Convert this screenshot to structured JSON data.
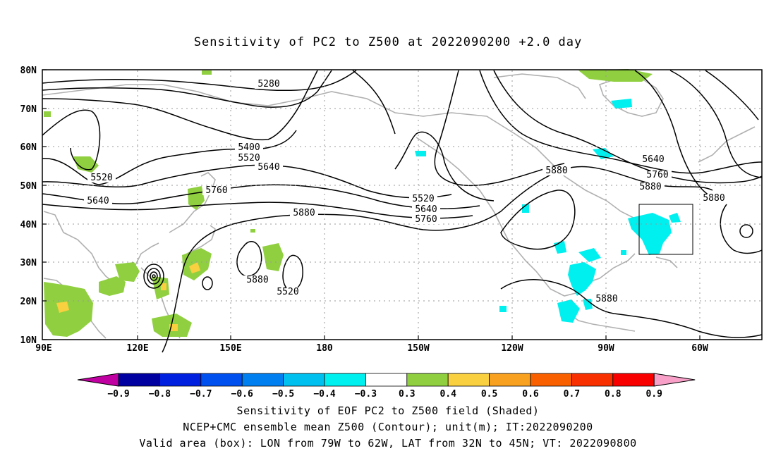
{
  "title": "Sensitivity of PC2 to Z500 at 2022090200 +2.0 day",
  "lat_labels": [
    "80N",
    "70N",
    "60N",
    "50N",
    "40N",
    "30N",
    "20N",
    "10N"
  ],
  "lon_labels": [
    "90E",
    "120E",
    "150E",
    "180",
    "150W",
    "120W",
    "90W",
    "60W"
  ],
  "contour_labels": [
    {
      "text": "5280"
    },
    {
      "text": "5400"
    },
    {
      "text": "5520"
    },
    {
      "text": "5640"
    },
    {
      "text": "5520"
    },
    {
      "text": "5640"
    },
    {
      "text": "5760"
    },
    {
      "text": "5880"
    },
    {
      "text": "5520"
    },
    {
      "text": "5640"
    },
    {
      "text": "5760"
    },
    {
      "text": "5880"
    },
    {
      "text": "5880"
    },
    {
      "text": "5520"
    },
    {
      "text": "5640"
    },
    {
      "text": "5760"
    },
    {
      "text": "5880"
    },
    {
      "text": "5880"
    },
    {
      "text": "5880"
    }
  ],
  "colorbar": {
    "levels": [
      "-0.9",
      "-0.8",
      "-0.7",
      "-0.6",
      "-0.5",
      "-0.4",
      "-0.3",
      "0.3",
      "0.4",
      "0.5",
      "0.6",
      "0.7",
      "0.8",
      "0.9"
    ],
    "colors": [
      "#c000a0",
      "#0000a0",
      "#0020e0",
      "#0050f0",
      "#0080f0",
      "#00c0f0",
      "#00f0f0",
      "#ffffff",
      "#90d040",
      "#f8d040",
      "#f8a020",
      "#f86000",
      "#f83000",
      "#f80000",
      "#f8a0c8"
    ]
  },
  "shading_colors": {
    "positive_low": "#90d040",
    "positive_mid": "#f8d040",
    "negative": "#00f0f0"
  },
  "valid_box": {
    "lon_west": "79W",
    "lon_east": "62W",
    "lat_south": "32N",
    "lat_north": "45N"
  },
  "captions": {
    "line1": "Sensitivity of EOF PC2 to Z500 field (Shaded)",
    "line2": "NCEP+CMC ensemble mean Z500 (Contour); unit(m); IT:2022090200",
    "line3": "Valid area (box): LON from 79W to 62W, LAT from 32N to 45N; VT: 2022090800"
  }
}
